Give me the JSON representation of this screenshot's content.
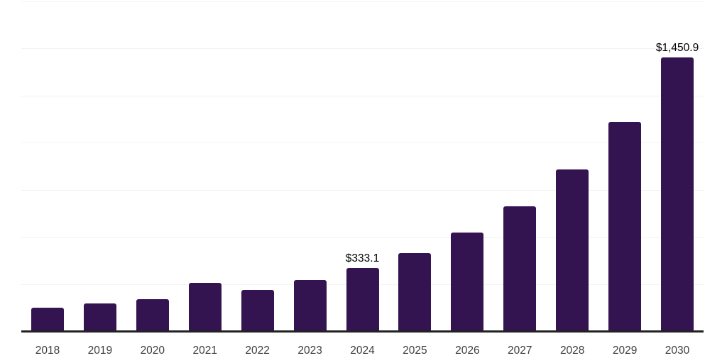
{
  "chart_data": {
    "type": "bar",
    "title": "",
    "xlabel": "",
    "ylabel": "",
    "categories": [
      "2018",
      "2019",
      "2020",
      "2021",
      "2022",
      "2023",
      "2024",
      "2025",
      "2026",
      "2027",
      "2028",
      "2029",
      "2030"
    ],
    "values": [
      125.4,
      146.9,
      169.7,
      255.1,
      218.0,
      270.0,
      333.1,
      414.7,
      522.4,
      663.5,
      856.6,
      1109.1,
      1450.9
    ],
    "annotations": [
      {
        "category": "2024",
        "text": "$333.1"
      },
      {
        "category": "2030",
        "text": "$1,450.9"
      }
    ],
    "ylim": [
      0,
      1750
    ],
    "gridline_step": 250,
    "grid": true,
    "legend": false,
    "colors": {
      "bar": "#341450",
      "gridline": "#f2f2f2",
      "axis_line": "#222222",
      "tick_label": "#3f3f3f",
      "value_label": "#000000",
      "background": "#ffffff"
    }
  }
}
